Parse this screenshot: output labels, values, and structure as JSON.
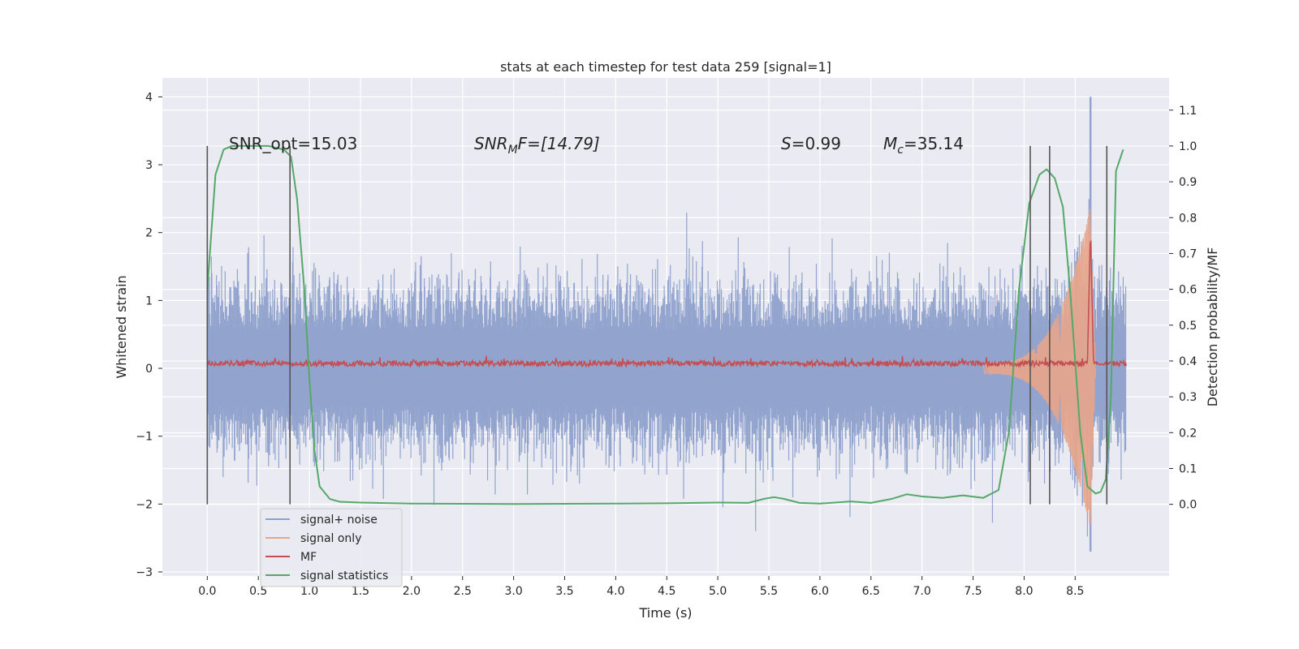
{
  "chart_data": {
    "type": "line",
    "title": "stats at each timestep for test data 259 [signal=1]",
    "xlabel": "Time (s)",
    "ylabel": "Whitened strain",
    "ylabel_right": "Detection probability/MF",
    "xlim": [
      -0.44,
      9.42
    ],
    "ylim": [
      -3.06,
      4.28
    ],
    "ylim_right": [
      -0.2,
      1.19
    ],
    "x_ticks": [
      "0.0",
      "0.5",
      "1.0",
      "1.5",
      "2.0",
      "2.5",
      "3.0",
      "3.5",
      "4.0",
      "4.5",
      "5.0",
      "5.5",
      "6.0",
      "6.5",
      "7.0",
      "7.5",
      "8.0",
      "8.5"
    ],
    "y_ticks": [
      "4",
      "3",
      "2",
      "1",
      "0",
      "−1",
      "−2",
      "−3"
    ],
    "y_right_ticks": [
      "1.1",
      "1.0",
      "0.9",
      "0.8",
      "0.7",
      "0.6",
      "0.5",
      "0.4",
      "0.3",
      "0.2",
      "0.1",
      "0.0"
    ],
    "grid": true,
    "legend_position": "lower-left",
    "series": [
      {
        "name": "signal+ noise",
        "color": "#8da0cb",
        "axis": "left",
        "duration": 9.0,
        "noise_envelope": 1.2,
        "peak": {
          "x": 8.65,
          "y_max": 4.0,
          "y_min": -2.7
        }
      },
      {
        "name": "signal only",
        "color": "#e8a58a",
        "axis": "left",
        "chirp_start": 7.6,
        "merger_x": 8.65,
        "merger_amplitude": 2.3
      },
      {
        "name": "MF",
        "color": "#c44e52",
        "axis": "left",
        "baseline": 0.07,
        "jitter": 0.08,
        "merger_x": 8.65,
        "merger_peak": 2.0
      },
      {
        "name": "signal statistics",
        "color": "#55a868",
        "axis": "right",
        "x": [
          0.0,
          0.08,
          0.16,
          0.24,
          0.4,
          0.6,
          0.75,
          0.82,
          0.88,
          0.95,
          1.0,
          1.05,
          1.1,
          1.2,
          1.3,
          1.5,
          2.0,
          3.0,
          4.0,
          4.5,
          5.0,
          5.3,
          5.45,
          5.55,
          5.65,
          5.8,
          6.0,
          6.3,
          6.5,
          6.7,
          6.85,
          7.0,
          7.2,
          7.4,
          7.6,
          7.75,
          7.85,
          7.95,
          8.05,
          8.15,
          8.22,
          8.3,
          8.38,
          8.45,
          8.55,
          8.62,
          8.7,
          8.75,
          8.8,
          8.85,
          8.9,
          8.97
        ],
        "y": [
          0.6,
          0.92,
          0.99,
          1.0,
          1.0,
          1.0,
          0.99,
          0.97,
          0.85,
          0.6,
          0.35,
          0.15,
          0.05,
          0.015,
          0.007,
          0.005,
          0.002,
          0.001,
          0.002,
          0.003,
          0.005,
          0.004,
          0.015,
          0.02,
          0.015,
          0.004,
          0.002,
          0.008,
          0.004,
          0.015,
          0.028,
          0.022,
          0.018,
          0.025,
          0.018,
          0.04,
          0.2,
          0.6,
          0.84,
          0.92,
          0.935,
          0.91,
          0.83,
          0.6,
          0.2,
          0.05,
          0.03,
          0.035,
          0.07,
          0.3,
          0.93,
          0.99
        ]
      },
      {
        "name": "",
        "color": "#555555",
        "axis": "right",
        "type": "vlines",
        "x": [
          0.0,
          0.81,
          8.06,
          8.25,
          8.81
        ],
        "ymin": 0.0,
        "ymax": 1.0
      }
    ],
    "annotations": {
      "snr_opt": "SNR_opt=15.03",
      "snr_mf_main": "SNR",
      "snr_mf_sub": "M",
      "snr_mf_tail": "F=[14.79]",
      "s_main": "S",
      "s_tail": "=0.99",
      "mc_main": "M",
      "mc_sub": "c",
      "mc_tail": "=35.14"
    }
  }
}
